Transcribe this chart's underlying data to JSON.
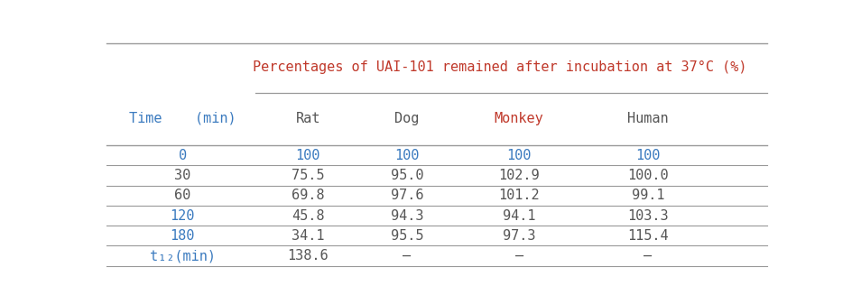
{
  "title": "Percentages of UAI-101 remained after incubation at 37°C (%)",
  "title_color": "#c0392b",
  "col_headers": [
    "Rat",
    "Dog",
    "Monkey",
    "Human"
  ],
  "col_header_colors": [
    "#555555",
    "#555555",
    "#c0392b",
    "#555555"
  ],
  "time_label": "Time    (min)",
  "time_label_color": "#3a7abf",
  "rows": [
    {
      "label": "0",
      "label_color": "#3a7abf",
      "values": [
        "100",
        "100",
        "100",
        "100"
      ],
      "value_colors": [
        "#3a7abf",
        "#3a7abf",
        "#3a7abf",
        "#3a7abf"
      ]
    },
    {
      "label": "30",
      "label_color": "#555555",
      "values": [
        "75.5",
        "95.0",
        "102.9",
        "100.0"
      ],
      "value_colors": [
        "#555555",
        "#555555",
        "#555555",
        "#555555"
      ]
    },
    {
      "label": "60",
      "label_color": "#555555",
      "values": [
        "69.8",
        "97.6",
        "101.2",
        "99.1"
      ],
      "value_colors": [
        "#555555",
        "#555555",
        "#555555",
        "#555555"
      ]
    },
    {
      "label": "120",
      "label_color": "#3a7abf",
      "values": [
        "45.8",
        "94.3",
        "94.1",
        "103.3"
      ],
      "value_colors": [
        "#555555",
        "#555555",
        "#555555",
        "#555555"
      ]
    },
    {
      "label": "180",
      "label_color": "#3a7abf",
      "values": [
        "34.1",
        "95.5",
        "97.3",
        "115.4"
      ],
      "value_colors": [
        "#555555",
        "#555555",
        "#555555",
        "#555555"
      ]
    },
    {
      "label": "t₁₂(min)",
      "label_color": "#3a7abf",
      "values": [
        "138.6",
        "–",
        "–",
        "–"
      ],
      "value_colors": [
        "#555555",
        "#555555",
        "#555555",
        "#555555"
      ]
    }
  ],
  "background_color": "#ffffff",
  "line_color": "#999999",
  "fontsize": 11,
  "header_fontsize": 11,
  "title_fontsize": 11
}
